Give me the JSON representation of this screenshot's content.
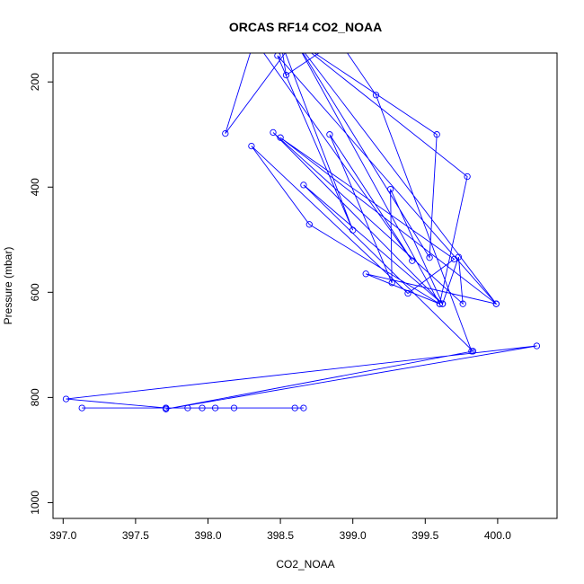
{
  "chart_data": {
    "type": "line",
    "title": "ORCAS RF14 CO2_NOAA",
    "xlabel": "CO2_NOAA",
    "ylabel": "Pressure (mbar)",
    "xlim": [
      396.93,
      400.41
    ],
    "ylim": [
      1030,
      145
    ],
    "y_reversed": true,
    "x_ticks": [
      397.0,
      397.5,
      398.0,
      398.5,
      399.0,
      399.5,
      400.0
    ],
    "x_tick_labels": [
      "397.0",
      "397.5",
      "398.0",
      "398.5",
      "399.0",
      "399.5",
      "400.0"
    ],
    "y_ticks": [
      200,
      400,
      600,
      800,
      1000
    ],
    "y_tick_labels": [
      "200",
      "400",
      "600",
      "800",
      "1000"
    ],
    "grid": false,
    "legend": "none",
    "series": [
      {
        "color": "#0000ff",
        "marker": "open-circle",
        "points": [
          [
            398.6,
            820
          ],
          [
            397.13,
            820
          ],
          [
            398.66,
            820
          ],
          [
            397.71,
            820
          ],
          [
            398.18,
            820
          ],
          [
            397.86,
            820
          ],
          [
            398.05,
            820
          ],
          [
            397.96,
            820
          ],
          [
            397.71,
            820
          ],
          [
            397.02,
            803
          ],
          [
            400.27,
            702
          ],
          [
            397.71,
            822
          ],
          [
            399.83,
            712
          ],
          [
            398.66,
            396
          ],
          [
            399.62,
            622
          ],
          [
            398.45,
            296
          ],
          [
            399.76,
            622
          ],
          [
            399.73,
            533
          ],
          [
            399.62,
            622
          ],
          [
            399.26,
            404
          ],
          [
            399.27,
            582
          ],
          [
            398.84,
            300
          ],
          [
            399.41,
            540
          ],
          [
            398.32,
            120
          ],
          [
            398.12,
            298
          ],
          [
            398.6,
            120
          ],
          [
            399.99,
            622
          ],
          [
            398.5,
            306
          ],
          [
            399.7,
            537
          ],
          [
            399.38,
            602
          ],
          [
            398.3,
            322
          ],
          [
            398.7,
            471
          ],
          [
            399.6,
            622
          ],
          [
            398.6,
            120
          ],
          [
            399.53,
            534
          ],
          [
            399.58,
            300
          ],
          [
            398.6,
            120
          ],
          [
            399.79,
            380
          ],
          [
            399.6,
            622
          ],
          [
            399.09,
            565
          ],
          [
            399.99,
            622
          ],
          [
            398.48,
            150
          ],
          [
            399.0,
            482
          ],
          [
            398.5,
            120
          ],
          [
            398.54,
            187
          ],
          [
            398.9,
            120
          ],
          [
            399.16,
            225
          ],
          [
            399.82,
            712
          ]
        ]
      }
    ]
  }
}
